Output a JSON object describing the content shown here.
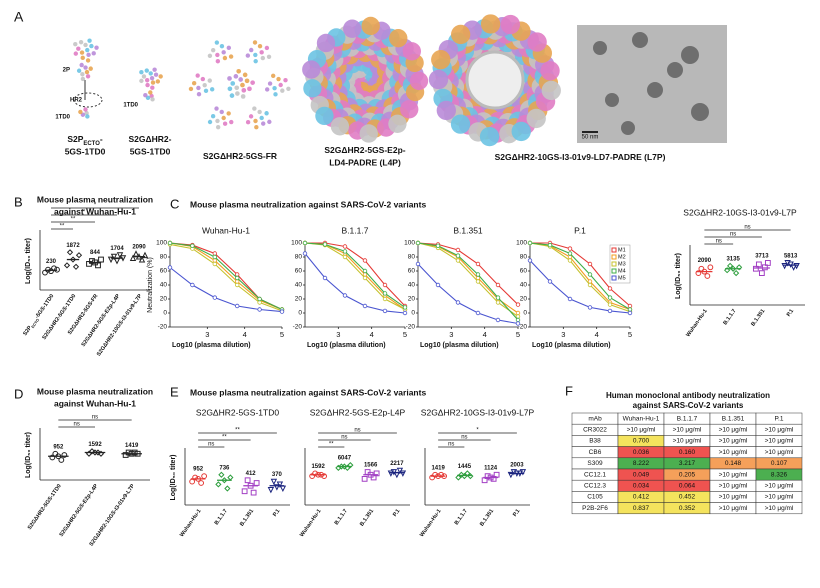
{
  "panel_a": {
    "label": "A",
    "structures": [
      {
        "name": [
          "S2P",
          "ECTO",
          "-"
        ],
        "name_line2": "5GS-1TD0",
        "annotations": [
          "2P",
          "HR2",
          "1TD0"
        ]
      },
      {
        "name": [
          "S2GΔHR2-"
        ],
        "name_line2": "5GS-1TD0",
        "annotations": [
          "1TD0"
        ]
      },
      {
        "name": [
          "S2GΔHR2-5GS-FR"
        ]
      },
      {
        "name": [
          "S2GΔHR2-5GS-E2p-"
        ],
        "name_line2": "LD4-PADRE (L4P)"
      },
      {
        "name": [
          "S2GΔHR2-10GS-I3-01v9-LD7-PADRE (L7P)"
        ]
      }
    ],
    "scale_bar": "50 nm"
  },
  "panel_b": {
    "label": "B",
    "title": [
      "Mouse plasma neutralization",
      "against Wuhan-Hu-1"
    ],
    "ylabel": "Log(ID₅₀ titer)",
    "ylim": [
      1,
      5
    ],
    "groups": [
      {
        "label": [
          "S2P",
          "ECTO",
          "-5GS-1TD0"
        ],
        "titer": "230",
        "color": "#222",
        "points": [
          2.2,
          2.4,
          2.3,
          2.5,
          2.4
        ],
        "mean": 2.36
      },
      {
        "label": [
          "S2GΔHR2-5GS-1TD0"
        ],
        "titer": "1872",
        "color": "#222",
        "points": [
          2.7,
          3.6,
          3.1,
          2.6,
          3.4
        ],
        "mean": 3.1
      },
      {
        "label": [
          "S2GΔHR2-5GS-FR"
        ],
        "titer": "844",
        "color": "#222",
        "points": [
          2.8,
          3.0,
          2.9,
          2.7,
          3.1
        ],
        "mean": 2.9
      },
      {
        "label": [
          "S2GΔHR2-5GS-E2p-L4P"
        ],
        "titer": "1704",
        "color": "#222",
        "points": [
          3.1,
          3.3,
          3.0,
          3.4,
          3.2
        ],
        "mean": 3.2
      },
      {
        "label": [
          "S2GΔHR2-10GS-I3-01v9-L7P"
        ],
        "titer": "2090",
        "color": "#222",
        "points": [
          3.2,
          3.5,
          3.3,
          3.1,
          3.4
        ],
        "mean": 3.3
      }
    ],
    "comparisons": [
      "**",
      "**",
      "*",
      "*"
    ]
  },
  "panel_c": {
    "label": "C",
    "title": "Mouse plasma neutralization against SARS-CoV-2 variants",
    "xlabel": "Log10 (plasma dilution)",
    "ylabel": "Neutralization (%)",
    "x": [
      2,
      2.6,
      3.2,
      3.8,
      4.4,
      5
    ],
    "xlim": [
      2,
      5
    ],
    "xticks": [
      3,
      4,
      5
    ],
    "ylim": [
      -20,
      100
    ],
    "yticks": [
      -20,
      0,
      20,
      40,
      60,
      80,
      100
    ],
    "legend": "top-right",
    "series": [
      {
        "name": "M1",
        "color": "#e53935"
      },
      {
        "name": "M2",
        "color": "#f39c1e"
      },
      {
        "name": "M3",
        "color": "#c5c22e"
      },
      {
        "name": "M4",
        "color": "#3fae49"
      },
      {
        "name": "M5",
        "color": "#4a55d0"
      }
    ],
    "subplots": [
      {
        "title": "Wuhan-Hu-1",
        "values": [
          [
            100,
            97,
            85,
            55,
            20,
            5
          ],
          [
            100,
            95,
            75,
            45,
            18,
            5
          ],
          [
            98,
            92,
            70,
            40,
            15,
            3
          ],
          [
            100,
            96,
            80,
            50,
            20,
            5
          ],
          [
            65,
            40,
            22,
            10,
            5,
            2
          ]
        ]
      },
      {
        "title": "B.1.1.7",
        "values": [
          [
            100,
            100,
            95,
            75,
            40,
            10
          ],
          [
            100,
            98,
            85,
            55,
            25,
            5
          ],
          [
            100,
            97,
            80,
            50,
            20,
            5
          ],
          [
            100,
            98,
            88,
            60,
            28,
            8
          ],
          [
            85,
            50,
            25,
            10,
            3,
            0
          ]
        ]
      },
      {
        "title": "B.1.351",
        "values": [
          [
            100,
            98,
            90,
            70,
            40,
            12
          ],
          [
            100,
            95,
            80,
            50,
            20,
            0
          ],
          [
            100,
            93,
            75,
            45,
            15,
            -5
          ],
          [
            100,
            96,
            82,
            55,
            22,
            -10
          ],
          [
            70,
            40,
            15,
            0,
            -10,
            -15
          ]
        ]
      },
      {
        "title": "P.1",
        "values": [
          [
            100,
            100,
            92,
            70,
            35,
            10
          ],
          [
            100,
            96,
            80,
            45,
            15,
            5
          ],
          [
            100,
            95,
            75,
            40,
            12,
            2
          ],
          [
            100,
            97,
            85,
            55,
            22,
            5
          ],
          [
            75,
            45,
            20,
            8,
            3,
            0
          ]
        ]
      }
    ],
    "titer_plot": {
      "title": "S2GΔHR2-10GS-I3-01v9-L7P",
      "ylabel": "Log(ID₅₀ titer)",
      "ylim": [
        1,
        5
      ],
      "groups": [
        {
          "label": [
            "Wuhan-Hu-1"
          ],
          "titer": "2090",
          "color": "#e53935",
          "points": [
            3.2,
            3.5,
            3.3,
            3.0,
            3.6
          ],
          "mean": 3.3
        },
        {
          "label": [
            "B.1.1.7"
          ],
          "titer": "3135",
          "color": "#2e9e3e",
          "points": [
            3.4,
            3.7,
            3.5,
            3.2,
            3.6
          ],
          "mean": 3.5
        },
        {
          "label": [
            "B.1.351"
          ],
          "titer": "3713",
          "color": "#a23fc4",
          "points": [
            3.5,
            3.8,
            3.2,
            3.6,
            3.9
          ],
          "mean": 3.55
        },
        {
          "label": [
            "P.1"
          ],
          "titer": "5813",
          "color": "#1a237e",
          "points": [
            3.7,
            3.9,
            3.8,
            3.6,
            3.7
          ],
          "mean": 3.75
        }
      ],
      "comparisons": [
        "ns",
        "ns",
        "ns"
      ]
    }
  },
  "panel_d": {
    "label": "D",
    "title": [
      "Mouse plasma neutralization",
      "against Wuhan-Hu-1"
    ],
    "ylabel": "Log(ID₅₀ titer)",
    "ylim": [
      1,
      5
    ],
    "groups": [
      {
        "label": [
          "S2GΔHR2-5GS-1TD0"
        ],
        "titer": "952",
        "color": "#222",
        "points": [
          2.8,
          3.1,
          2.9,
          2.6,
          3.0
        ],
        "mean": 2.9
      },
      {
        "label": [
          "S2GΔHR2-5GS-E2p-L4P"
        ],
        "titer": "1592",
        "color": "#222",
        "points": [
          3.1,
          3.3,
          3.2,
          3.2,
          3.1
        ],
        "mean": 3.2
      },
      {
        "label": [
          "S2GΔHR2-10GS-I3-01v9-L7P"
        ],
        "titer": "1419",
        "color": "#222",
        "points": [
          3.0,
          3.2,
          3.1,
          3.2,
          3.1
        ],
        "mean": 3.1
      }
    ],
    "comparisons": [
      "ns",
      "ns"
    ]
  },
  "panel_e": {
    "label": "E",
    "title": "Mouse plasma neutralization against SARS-CoV-2 variants",
    "ylabel": "Log(ID₅₀ titer)",
    "plots": [
      {
        "title": "S2GΔHR2-5GS-1TD0",
        "ylim": [
          1,
          5
        ],
        "groups": [
          {
            "label": [
              "Wuhan-Hu-1"
            ],
            "titer": "952",
            "color": "#e53935",
            "points": [
              2.7,
              3.0,
              2.9,
              2.6,
              3.1
            ],
            "mean": 2.9
          },
          {
            "label": [
              "B.1.1.7"
            ],
            "titer": "736",
            "color": "#2e9e3e",
            "points": [
              2.5,
              3.2,
              2.8,
              2.2,
              3.0
            ],
            "mean": 2.8
          },
          {
            "label": [
              "B.1.351"
            ],
            "titer": "412",
            "color": "#a23fc4",
            "points": [
              2.0,
              2.8,
              2.4,
              1.9,
              2.6
            ],
            "mean": 2.4
          },
          {
            "label": [
              "P.1"
            ],
            "titer": "370",
            "color": "#1a237e",
            "points": [
              2.1,
              2.7,
              2.3,
              2.5,
              2.2
            ],
            "mean": 2.4
          }
        ],
        "comparisons": [
          "ns",
          "**",
          "**"
        ]
      },
      {
        "title": "S2GΔHR2-5GS-E2p-L4P",
        "ylim": [
          1,
          5
        ],
        "groups": [
          {
            "label": [
              "Wuhan-Hu-1"
            ],
            "titer": "1592",
            "color": "#e53935",
            "points": [
              3.1,
              3.3,
              3.2,
              3.2,
              3.1
            ],
            "mean": 3.2
          },
          {
            "label": [
              "B.1.1.7"
            ],
            "titer": "6047",
            "color": "#2e9e3e",
            "points": [
              3.7,
              3.8,
              3.8,
              3.7,
              3.9
            ],
            "mean": 3.8
          },
          {
            "label": [
              "B.1.351"
            ],
            "titer": "1566",
            "color": "#a23fc4",
            "points": [
              2.9,
              3.4,
              3.2,
              3.0,
              3.3
            ],
            "mean": 3.2
          },
          {
            "label": [
              "P.1"
            ],
            "titer": "2217",
            "color": "#1a237e",
            "points": [
              3.3,
              3.4,
              3.2,
              3.5,
              3.3
            ],
            "mean": 3.35
          }
        ],
        "comparisons": [
          "**",
          "ns",
          "ns"
        ]
      },
      {
        "title": "S2GΔHR2-10GS-I3-01v9-L7P",
        "ylim": [
          1,
          5
        ],
        "groups": [
          {
            "label": [
              "Wuhan-Hu-1"
            ],
            "titer": "1419",
            "color": "#e53935",
            "points": [
              3.0,
              3.2,
              3.1,
              3.2,
              3.1
            ],
            "mean": 3.1
          },
          {
            "label": [
              "B.1.1.7"
            ],
            "titer": "1445",
            "color": "#2e9e3e",
            "points": [
              3.0,
              3.2,
              3.1,
              3.3,
              3.1
            ],
            "mean": 3.15
          },
          {
            "label": [
              "B.1.351"
            ],
            "titer": "1124",
            "color": "#a23fc4",
            "points": [
              2.8,
              3.1,
              3.0,
              2.9,
              3.2
            ],
            "mean": 3.0
          },
          {
            "label": [
              "P.1"
            ],
            "titer": "2003",
            "color": "#1a237e",
            "points": [
              3.2,
              3.4,
              3.3,
              3.3,
              3.4
            ],
            "mean": 3.3
          }
        ],
        "comparisons": [
          "ns",
          "ns",
          "*"
        ]
      }
    ]
  },
  "panel_f": {
    "label": "F",
    "title": [
      "Human monoclonal antibody neutralization",
      "against SARS-CoV-2 variants"
    ],
    "table": {
      "header": [
        "mAb",
        "Wuhan-Hu-1",
        "B.1.1.7",
        "B.1.351",
        "P.1"
      ],
      "rows": [
        [
          "CR3022",
          ">10 μg/ml",
          ">10 μg/ml",
          ">10 μg/ml",
          ">10 μg/ml"
        ],
        [
          "B38",
          "0.700",
          ">10 μg/ml",
          ">10 μg/ml",
          ">10 μg/ml"
        ],
        [
          "CB6",
          "0.036",
          "0.160",
          ">10 μg/ml",
          ">10 μg/ml"
        ],
        [
          "S309",
          "8.222",
          "3.217",
          "0.148",
          "0.107"
        ],
        [
          "CC12.1",
          "0.049",
          "0.205",
          ">10 μg/ml",
          "8.326"
        ],
        [
          "CC12.3",
          "0.034",
          "0.064",
          ">10 μg/ml",
          ">10 μg/ml"
        ],
        [
          "C105",
          "0.412",
          "0.452",
          ">10 μg/ml",
          ">10 μg/ml"
        ],
        [
          "P2B-2F6",
          "0.837",
          "0.352",
          ">10 μg/ml",
          ">10 μg/ml"
        ]
      ],
      "fills": [
        [
          "#ffffff",
          "#ffffff",
          "#ffffff",
          "#ffffff"
        ],
        [
          "#f4e35d",
          "#ffffff",
          "#ffffff",
          "#ffffff"
        ],
        [
          "#ef5350",
          "#ef5350",
          "#ffffff",
          "#ffffff"
        ],
        [
          "#4caf50",
          "#4caf50",
          "#f5a05a",
          "#f5a05a"
        ],
        [
          "#ef5350",
          "#f5a05a",
          "#ffffff",
          "#4caf50"
        ],
        [
          "#ef5350",
          "#ef5350",
          "#ffffff",
          "#ffffff"
        ],
        [
          "#f4e35d",
          "#f4e35d",
          "#ffffff",
          "#ffffff"
        ],
        [
          "#f4e35d",
          "#f4e35d",
          "#ffffff",
          "#ffffff"
        ]
      ]
    }
  }
}
